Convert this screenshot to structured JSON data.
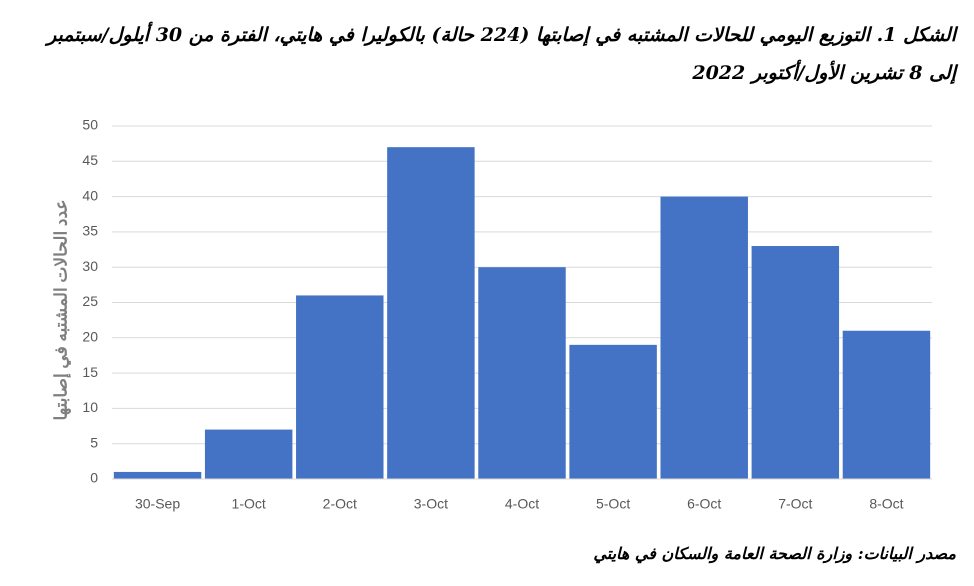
{
  "chart_data": {
    "type": "bar",
    "title": "الشكل 1. التوزيع اليومي للحالات المشتبه في إصابتها (224 حالة) بالكوليرا في هايتي، الفترة من 30 أيلول/سبتمبر إلى 8 تشرين الأول/أكتوبر 2022",
    "y_label": "عدد الحالات المشتبه في إصابتها",
    "source": "مصدر البيانات: وزارة الصحة العامة والسكان في هايتي",
    "categories": [
      "30-Sep",
      "1-Oct",
      "2-Oct",
      "3-Oct",
      "4-Oct",
      "5-Oct",
      "6-Oct",
      "7-Oct",
      "8-Oct"
    ],
    "values": [
      1,
      7,
      26,
      47,
      30,
      19,
      40,
      33,
      21
    ],
    "color": "#4472c4",
    "ylim": [
      0,
      50
    ],
    "yticks": [
      0,
      5,
      10,
      15,
      20,
      25,
      30,
      35,
      40,
      45,
      50
    ],
    "grid": true
  }
}
